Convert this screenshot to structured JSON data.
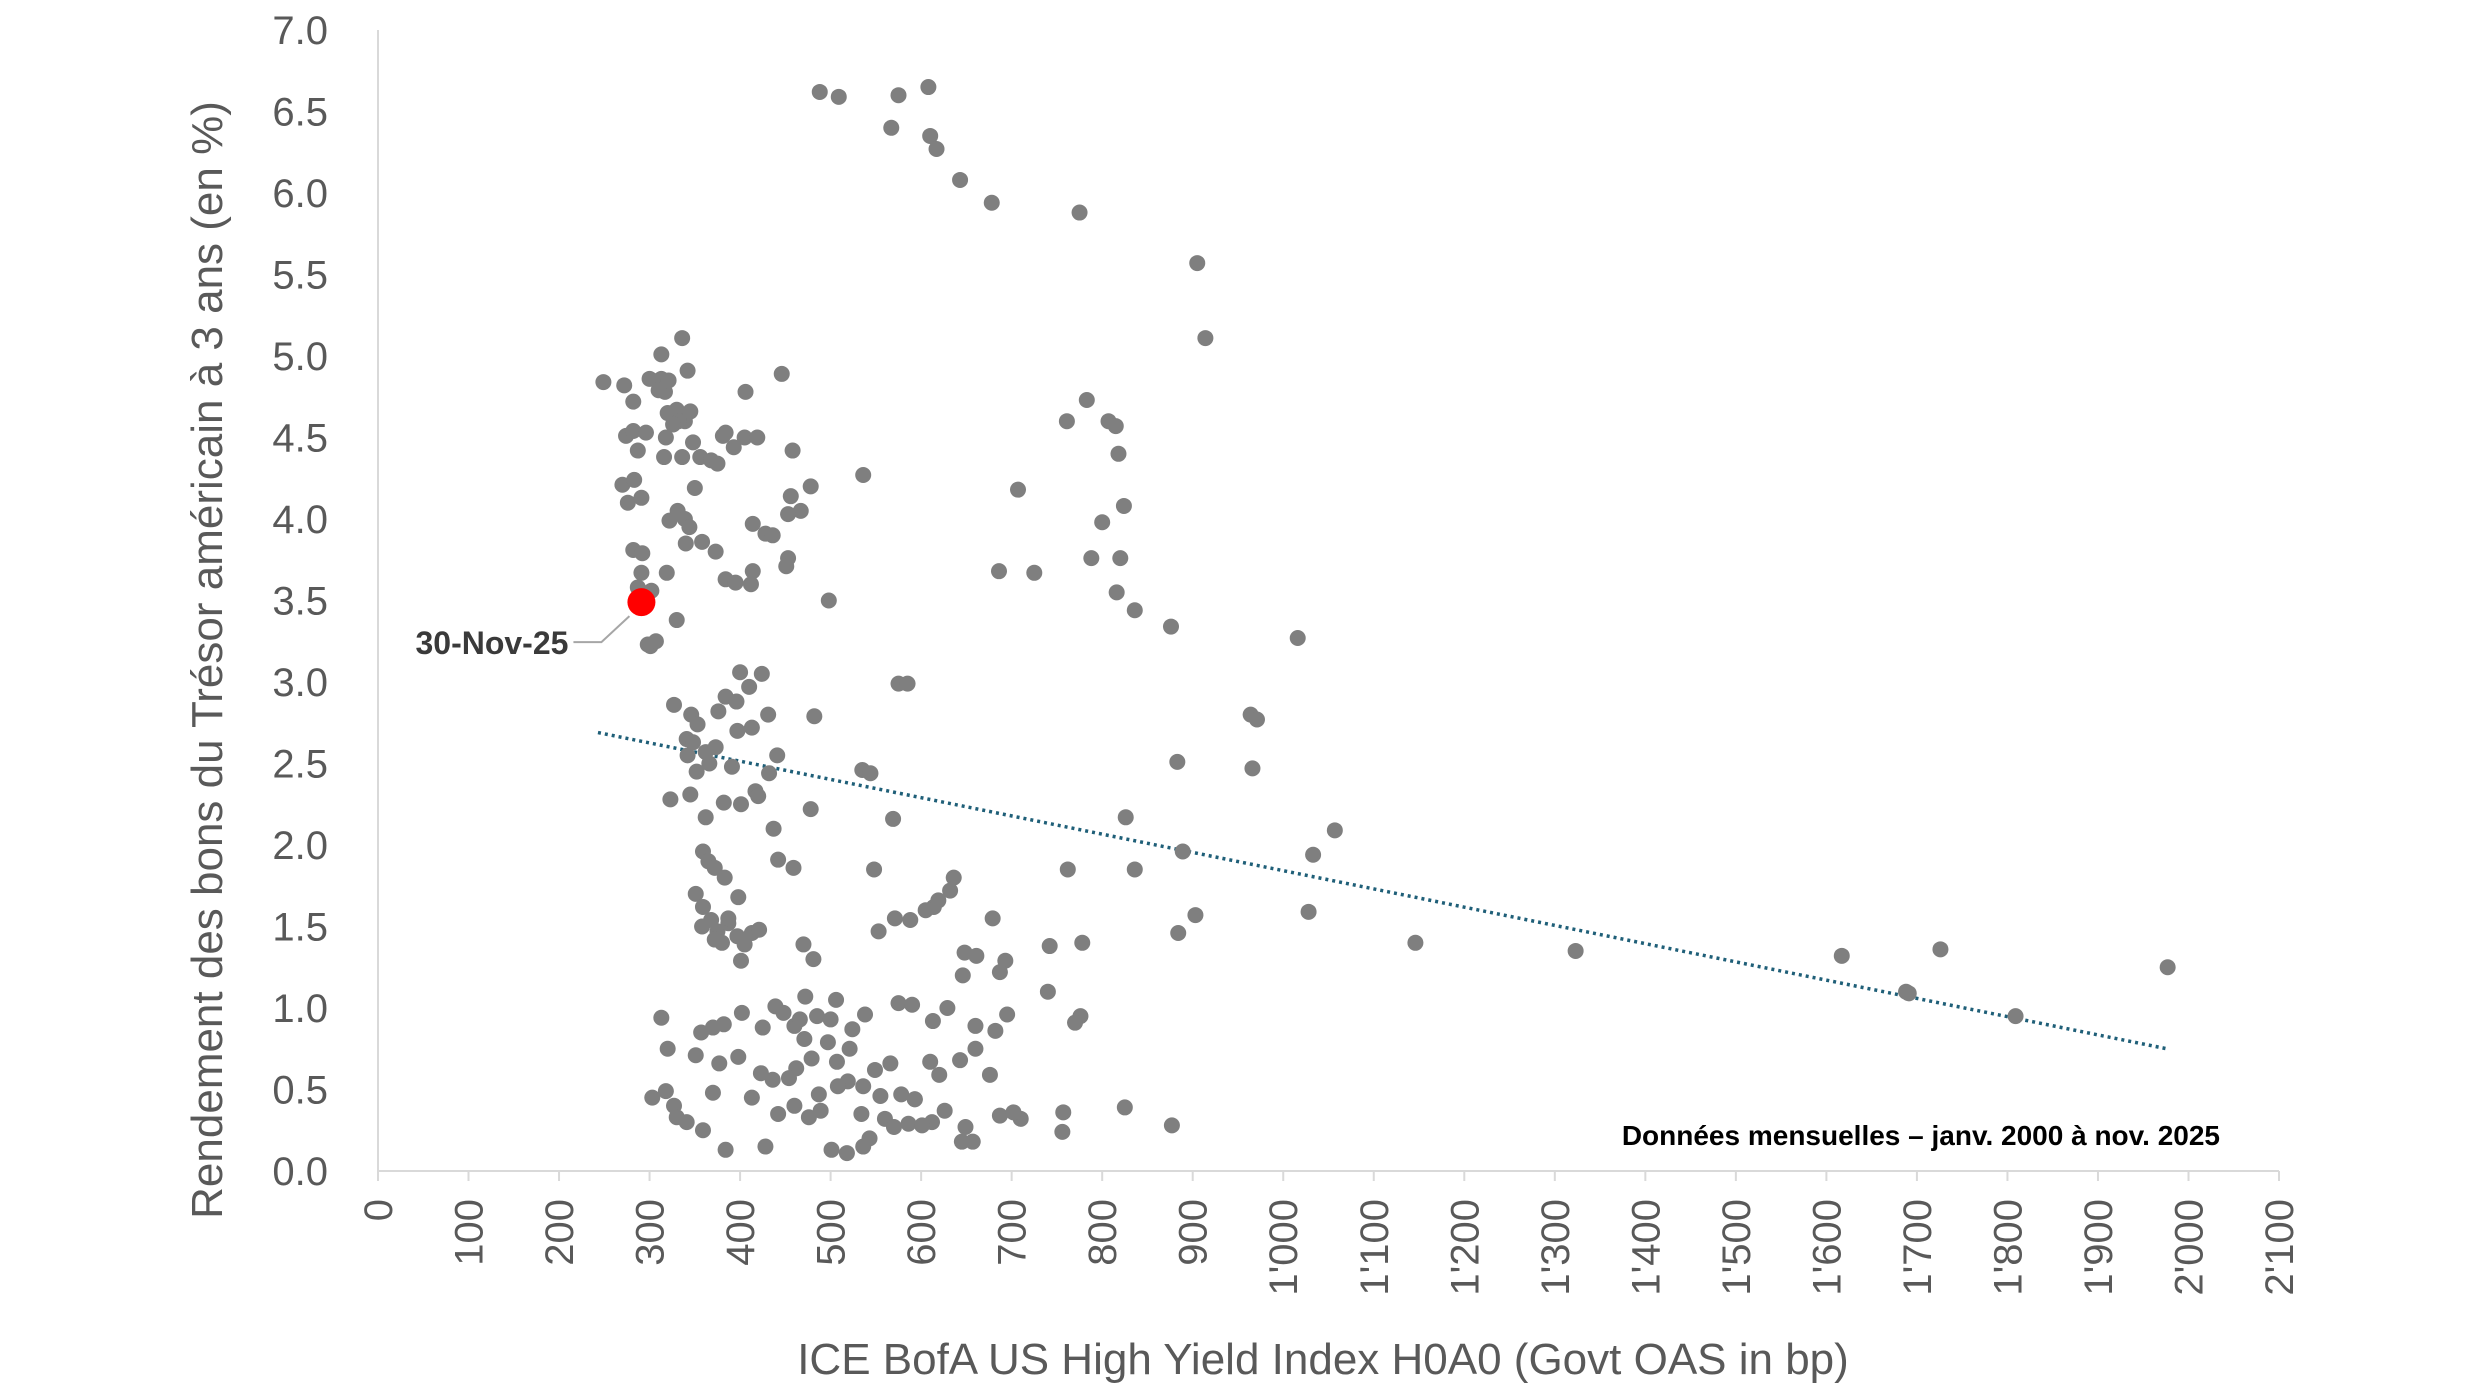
{
  "chart_data": {
    "type": "scatter",
    "title": "",
    "xlabel": "ICE BofA US High Yield Index H0A0 (Govt OAS in bp)",
    "ylabel": "Rendement des bons du Trésor américain à 3 ans (en %)",
    "xlim": [
      0,
      2100
    ],
    "ylim": [
      0,
      7
    ],
    "x_ticks": [
      0,
      100,
      200,
      300,
      400,
      500,
      600,
      700,
      800,
      900,
      1000,
      1100,
      1200,
      1300,
      1400,
      1500,
      1600,
      1700,
      1800,
      1900,
      2000,
      2100
    ],
    "x_tick_labels": [
      "0",
      "100",
      "200",
      "300",
      "400",
      "500",
      "600",
      "700",
      "800",
      "900",
      "1'000",
      "1'100",
      "1'200",
      "1'300",
      "1'400",
      "1'500",
      "1'600",
      "1'700",
      "1'800",
      "1'900",
      "2'000",
      "2'100"
    ],
    "y_ticks": [
      0,
      0.5,
      1,
      1.5,
      2,
      2.5,
      3,
      3.5,
      4,
      4.5,
      5,
      5.5,
      6,
      6.5,
      7
    ],
    "y_tick_labels": [
      "0.0",
      "0.5",
      "1.0",
      "1.5",
      "2.0",
      "2.5",
      "3.0",
      "3.5",
      "4.0",
      "4.5",
      "5.0",
      "5.5",
      "6.0",
      "6.5",
      "7.0"
    ],
    "grid": false,
    "point_color": "#7f7f7f",
    "highlight_color": "#ff0000",
    "trendline_color": "#1f5f78",
    "note": "Données mensuelles – janv. 2000 à nov. 2025",
    "highlight": {
      "label": "30-Nov-25",
      "x": 291,
      "y": 3.49
    },
    "trendline": {
      "x": [
        243,
        1976
      ],
      "y": [
        2.69,
        0.75
      ]
    },
    "series": [
      {
        "points": [
          [
            488,
            6.62
          ],
          [
            509,
            6.59
          ],
          [
            575,
            6.6
          ],
          [
            608,
            6.65
          ],
          [
            567,
            6.4
          ],
          [
            610,
            6.35
          ],
          [
            617,
            6.27
          ],
          [
            643,
            6.08
          ],
          [
            678,
            5.94
          ],
          [
            775,
            5.88
          ],
          [
            905,
            5.57
          ],
          [
            914,
            5.11
          ],
          [
            249,
            4.84
          ],
          [
            272,
            4.82
          ],
          [
            300,
            4.86
          ],
          [
            313,
            4.86
          ],
          [
            317,
            4.78
          ],
          [
            310,
            4.79
          ],
          [
            313,
            5.01
          ],
          [
            336,
            5.11
          ],
          [
            342,
            4.91
          ],
          [
            321,
            4.85
          ],
          [
            406,
            4.78
          ],
          [
            446,
            4.89
          ],
          [
            282,
            4.72
          ],
          [
            330,
            4.67
          ],
          [
            339,
            4.6
          ],
          [
            345,
            4.66
          ],
          [
            320,
            4.65
          ],
          [
            332,
            4.6
          ],
          [
            274,
            4.51
          ],
          [
            282,
            4.54
          ],
          [
            296,
            4.53
          ],
          [
            318,
            4.5
          ],
          [
            326,
            4.58
          ],
          [
            348,
            4.47
          ],
          [
            381,
            4.51
          ],
          [
            384,
            4.53
          ],
          [
            405,
            4.5
          ],
          [
            419,
            4.5
          ],
          [
            458,
            4.42
          ],
          [
            393,
            4.44
          ],
          [
            356,
            4.38
          ],
          [
            368,
            4.36
          ],
          [
            375,
            4.34
          ],
          [
            316,
            4.38
          ],
          [
            336,
            4.38
          ],
          [
            287,
            4.42
          ],
          [
            270,
            4.21
          ],
          [
            276,
            4.1
          ],
          [
            291,
            4.13
          ],
          [
            283,
            4.24
          ],
          [
            350,
            4.19
          ],
          [
            478,
            4.2
          ],
          [
            536,
            4.27
          ],
          [
            707,
            4.18
          ],
          [
            467,
            4.05
          ],
          [
            453,
            4.03
          ],
          [
            456,
            4.14
          ],
          [
            331,
            4.05
          ],
          [
            322,
            3.99
          ],
          [
            339,
            4.0
          ],
          [
            344,
            3.95
          ],
          [
            414,
            3.97
          ],
          [
            428,
            3.91
          ],
          [
            436,
            3.9
          ],
          [
            340,
            3.85
          ],
          [
            358,
            3.86
          ],
          [
            373,
            3.8
          ],
          [
            282,
            3.81
          ],
          [
            292,
            3.79
          ],
          [
            291,
            3.67
          ],
          [
            287,
            3.58
          ],
          [
            319,
            3.67
          ],
          [
            302,
            3.56
          ],
          [
            384,
            3.63
          ],
          [
            395,
            3.61
          ],
          [
            412,
            3.6
          ],
          [
            414,
            3.68
          ],
          [
            453,
            3.76
          ],
          [
            451,
            3.71
          ],
          [
            498,
            3.5
          ],
          [
            686,
            3.68
          ],
          [
            725,
            3.67
          ],
          [
            761,
            4.6
          ],
          [
            783,
            4.73
          ],
          [
            807,
            4.6
          ],
          [
            815,
            4.57
          ],
          [
            818,
            4.4
          ],
          [
            800,
            3.98
          ],
          [
            824,
            4.08
          ],
          [
            788,
            3.76
          ],
          [
            820,
            3.76
          ],
          [
            816,
            3.55
          ],
          [
            836,
            3.44
          ],
          [
            876,
            3.34
          ],
          [
            1016,
            3.27
          ],
          [
            330,
            3.38
          ],
          [
            298,
            3.23
          ],
          [
            301,
            3.22
          ],
          [
            307,
            3.25
          ],
          [
            327,
            2.86
          ],
          [
            346,
            2.8
          ],
          [
            353,
            2.74
          ],
          [
            341,
            2.65
          ],
          [
            348,
            2.63
          ],
          [
            362,
            2.57
          ],
          [
            376,
            2.82
          ],
          [
            384,
            2.91
          ],
          [
            396,
            2.88
          ],
          [
            410,
            2.97
          ],
          [
            400,
            3.06
          ],
          [
            424,
            3.05
          ],
          [
            431,
            2.8
          ],
          [
            413,
            2.72
          ],
          [
            397,
            2.7
          ],
          [
            482,
            2.79
          ],
          [
            575,
            2.99
          ],
          [
            585,
            2.99
          ],
          [
            342,
            2.55
          ],
          [
            352,
            2.45
          ],
          [
            366,
            2.5
          ],
          [
            373,
            2.6
          ],
          [
            391,
            2.48
          ],
          [
            417,
            2.33
          ],
          [
            432,
            2.44
          ],
          [
            441,
            2.55
          ],
          [
            323,
            2.28
          ],
          [
            345,
            2.31
          ],
          [
            362,
            2.17
          ],
          [
            382,
            2.26
          ],
          [
            401,
            2.25
          ],
          [
            420,
            2.3
          ],
          [
            437,
            2.1
          ],
          [
            478,
            2.22
          ],
          [
            535,
            2.46
          ],
          [
            544,
            2.44
          ],
          [
            569,
            2.16
          ],
          [
            883,
            2.51
          ],
          [
            964,
            2.8
          ],
          [
            971,
            2.77
          ],
          [
            966,
            2.47
          ],
          [
            359,
            1.96
          ],
          [
            365,
            1.9
          ],
          [
            372,
            1.86
          ],
          [
            383,
            1.8
          ],
          [
            398,
            1.68
          ],
          [
            442,
            1.91
          ],
          [
            459,
            1.86
          ],
          [
            548,
            1.85
          ],
          [
            636,
            1.8
          ],
          [
            632,
            1.72
          ],
          [
            614,
            1.62
          ],
          [
            619,
            1.66
          ],
          [
            571,
            1.55
          ],
          [
            588,
            1.54
          ],
          [
            605,
            1.6
          ],
          [
            553,
            1.47
          ],
          [
            762,
            1.85
          ],
          [
            826,
            2.17
          ],
          [
            836,
            1.85
          ],
          [
            889,
            1.96
          ],
          [
            1033,
            1.94
          ],
          [
            1057,
            2.09
          ],
          [
            1028,
            1.59
          ],
          [
            351,
            1.7
          ],
          [
            359,
            1.62
          ],
          [
            368,
            1.54
          ],
          [
            375,
            1.47
          ],
          [
            380,
            1.4
          ],
          [
            387,
            1.52
          ],
          [
            397,
            1.44
          ],
          [
            405,
            1.39
          ],
          [
            413,
            1.46
          ],
          [
            421,
            1.48
          ],
          [
            387,
            1.55
          ],
          [
            372,
            1.42
          ],
          [
            358,
            1.5
          ],
          [
            401,
            1.29
          ],
          [
            470,
            1.39
          ],
          [
            481,
            1.3
          ],
          [
            648,
            1.34
          ],
          [
            661,
            1.32
          ],
          [
            679,
            1.55
          ],
          [
            693,
            1.29
          ],
          [
            687,
            1.22
          ],
          [
            742,
            1.38
          ],
          [
            778,
            1.4
          ],
          [
            646,
            1.2
          ],
          [
            884,
            1.46
          ],
          [
            903,
            1.57
          ],
          [
            1146,
            1.4
          ],
          [
            1323,
            1.35
          ],
          [
            1617,
            1.32
          ],
          [
            1726,
            1.36
          ],
          [
            1688,
            1.1
          ],
          [
            1809,
            0.95
          ],
          [
            1977,
            1.25
          ],
          [
            1691,
            1.09
          ],
          [
            313,
            0.94
          ],
          [
            320,
            0.75
          ],
          [
            357,
            0.85
          ],
          [
            370,
            0.88
          ],
          [
            382,
            0.9
          ],
          [
            402,
            0.97
          ],
          [
            425,
            0.88
          ],
          [
            439,
            1.01
          ],
          [
            448,
            0.97
          ],
          [
            460,
            0.89
          ],
          [
            466,
            0.93
          ],
          [
            472,
            1.07
          ],
          [
            485,
            0.95
          ],
          [
            500,
            0.93
          ],
          [
            506,
            1.05
          ],
          [
            524,
            0.87
          ],
          [
            538,
            0.96
          ],
          [
            575,
            1.03
          ],
          [
            590,
            1.02
          ],
          [
            613,
            0.92
          ],
          [
            629,
            1.0
          ],
          [
            660,
            0.89
          ],
          [
            695,
            0.96
          ],
          [
            682,
            0.86
          ],
          [
            740,
            1.1
          ],
          [
            776,
            0.95
          ],
          [
            770,
            0.91
          ],
          [
            471,
            0.81
          ],
          [
            497,
            0.79
          ],
          [
            521,
            0.75
          ],
          [
            351,
            0.71
          ],
          [
            377,
            0.66
          ],
          [
            398,
            0.7
          ],
          [
            423,
            0.6
          ],
          [
            462,
            0.63
          ],
          [
            479,
            0.69
          ],
          [
            507,
            0.67
          ],
          [
            519,
            0.55
          ],
          [
            549,
            0.62
          ],
          [
            566,
            0.66
          ],
          [
            610,
            0.67
          ],
          [
            620,
            0.59
          ],
          [
            643,
            0.68
          ],
          [
            660,
            0.75
          ],
          [
            676,
            0.59
          ],
          [
            303,
            0.45
          ],
          [
            318,
            0.49
          ],
          [
            327,
            0.4
          ],
          [
            341,
            0.3
          ],
          [
            330,
            0.33
          ],
          [
            359,
            0.25
          ],
          [
            384,
            0.13
          ],
          [
            428,
            0.15
          ],
          [
            442,
            0.35
          ],
          [
            460,
            0.4
          ],
          [
            476,
            0.33
          ],
          [
            489,
            0.37
          ],
          [
            501,
            0.13
          ],
          [
            518,
            0.11
          ],
          [
            536,
            0.15
          ],
          [
            543,
            0.2
          ],
          [
            534,
            0.35
          ],
          [
            560,
            0.32
          ],
          [
            570,
            0.27
          ],
          [
            586,
            0.29
          ],
          [
            593,
            0.44
          ],
          [
            612,
            0.3
          ],
          [
            626,
            0.37
          ],
          [
            649,
            0.27
          ],
          [
            645,
            0.18
          ],
          [
            657,
            0.18
          ],
          [
            687,
            0.34
          ],
          [
            710,
            0.32
          ],
          [
            702,
            0.36
          ],
          [
            757,
            0.36
          ],
          [
            756,
            0.24
          ],
          [
            825,
            0.39
          ],
          [
            877,
            0.28
          ],
          [
            370,
            0.48
          ],
          [
            413,
            0.45
          ],
          [
            436,
            0.56
          ],
          [
            454,
            0.57
          ],
          [
            487,
            0.47
          ],
          [
            508,
            0.52
          ],
          [
            536,
            0.52
          ],
          [
            555,
            0.46
          ],
          [
            578,
            0.47
          ],
          [
            593,
            0.44
          ],
          [
            601,
            0.28
          ]
        ]
      }
    ]
  }
}
